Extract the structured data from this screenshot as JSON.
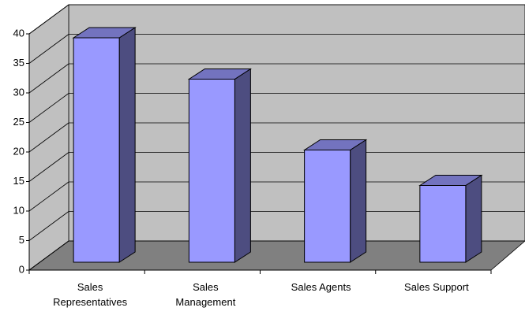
{
  "chart_data": {
    "type": "bar",
    "categories": [
      "Sales Representatives",
      "Sales Management",
      "Sales Agents",
      "Sales Support"
    ],
    "values": [
      38,
      31,
      19,
      13
    ],
    "color": "#9999ff",
    "ylim": [
      0,
      40
    ],
    "yticks": [
      0,
      5,
      10,
      15,
      20,
      25,
      30,
      35,
      40
    ],
    "grid": true
  }
}
